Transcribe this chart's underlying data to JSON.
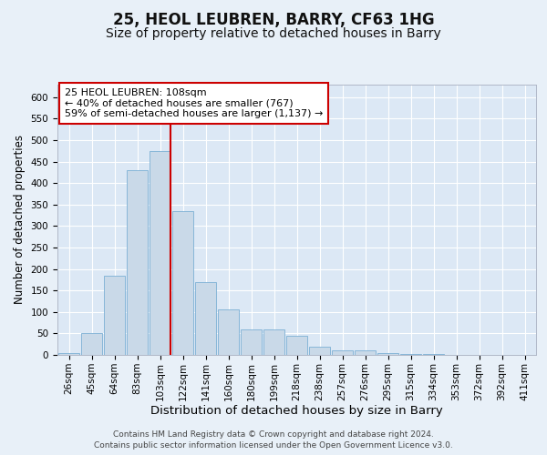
{
  "title": "25, HEOL LEUBREN, BARRY, CF63 1HG",
  "subtitle": "Size of property relative to detached houses in Barry",
  "xlabel": "Distribution of detached houses by size in Barry",
  "ylabel": "Number of detached properties",
  "categories": [
    "26sqm",
    "45sqm",
    "64sqm",
    "83sqm",
    "103sqm",
    "122sqm",
    "141sqm",
    "160sqm",
    "180sqm",
    "199sqm",
    "218sqm",
    "238sqm",
    "257sqm",
    "276sqm",
    "295sqm",
    "315sqm",
    "334sqm",
    "353sqm",
    "372sqm",
    "392sqm",
    "411sqm"
  ],
  "values": [
    5,
    50,
    185,
    430,
    475,
    335,
    170,
    105,
    60,
    60,
    45,
    20,
    10,
    10,
    5,
    3,
    2,
    1,
    1,
    1,
    1
  ],
  "bar_color": "#c9d9e8",
  "bar_edge_color": "#7bafd4",
  "background_color": "#e8f0f8",
  "plot_bg_color": "#dce8f5",
  "grid_color": "#ffffff",
  "vline_x_index": 4,
  "vline_color": "#cc0000",
  "annotation_box_color": "#cc0000",
  "annotation_line1": "25 HEOL LEUBREN: 108sqm",
  "annotation_line2": "← 40% of detached houses are smaller (767)",
  "annotation_line3": "59% of semi-detached houses are larger (1,137) →",
  "footer_line1": "Contains HM Land Registry data © Crown copyright and database right 2024.",
  "footer_line2": "Contains public sector information licensed under the Open Government Licence v3.0.",
  "ylim": [
    0,
    630
  ],
  "yticks": [
    0,
    50,
    100,
    150,
    200,
    250,
    300,
    350,
    400,
    450,
    500,
    550,
    600
  ],
  "title_fontsize": 12,
  "subtitle_fontsize": 10,
  "xlabel_fontsize": 9.5,
  "ylabel_fontsize": 8.5,
  "tick_fontsize": 7.5,
  "annotation_fontsize": 8,
  "footer_fontsize": 6.5
}
